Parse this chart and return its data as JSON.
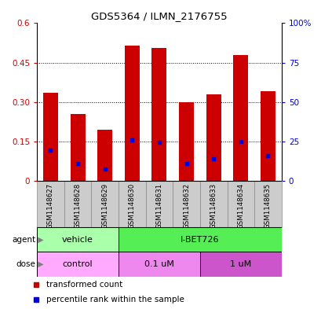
{
  "title": "GDS5364 / ILMN_2176755",
  "samples": [
    "GSM1148627",
    "GSM1148628",
    "GSM1148629",
    "GSM1148630",
    "GSM1148631",
    "GSM1148632",
    "GSM1148633",
    "GSM1148634",
    "GSM1148635"
  ],
  "red_values": [
    0.335,
    0.255,
    0.195,
    0.515,
    0.505,
    0.3,
    0.33,
    0.48,
    0.34
  ],
  "blue_values": [
    0.115,
    0.065,
    0.045,
    0.155,
    0.145,
    0.065,
    0.085,
    0.148,
    0.095
  ],
  "ylim_left": [
    0,
    0.6
  ],
  "ylim_right": [
    0,
    100
  ],
  "yticks_left": [
    0,
    0.15,
    0.3,
    0.45,
    0.6
  ],
  "yticks_right": [
    0,
    25,
    50,
    75,
    100
  ],
  "ytick_labels_left": [
    "0",
    "0.15",
    "0.30",
    "0.45",
    "0.6"
  ],
  "ytick_labels_right": [
    "0",
    "25",
    "50",
    "75",
    "100%"
  ],
  "bar_color": "#cc0000",
  "blue_color": "#0000dd",
  "agent_labels": [
    {
      "label": "vehicle",
      "start": 0,
      "end": 3,
      "color": "#aaffaa"
    },
    {
      "label": "I-BET726",
      "start": 3,
      "end": 9,
      "color": "#55ee55"
    }
  ],
  "dose_labels": [
    {
      "label": "control",
      "start": 0,
      "end": 3,
      "color": "#ffaaff"
    },
    {
      "label": "0.1 uM",
      "start": 3,
      "end": 6,
      "color": "#ee88ee"
    },
    {
      "label": "1 uM",
      "start": 6,
      "end": 9,
      "color": "#cc55cc"
    }
  ],
  "legend_red": "transformed count",
  "legend_blue": "percentile rank within the sample",
  "bar_width": 0.55,
  "tick_color_left": "#cc0000",
  "tick_color_right": "#0000cc",
  "grid_dotted_at": [
    0.15,
    0.3,
    0.45
  ],
  "sample_box_color": "#cccccc",
  "sample_box_edge": "#888888"
}
